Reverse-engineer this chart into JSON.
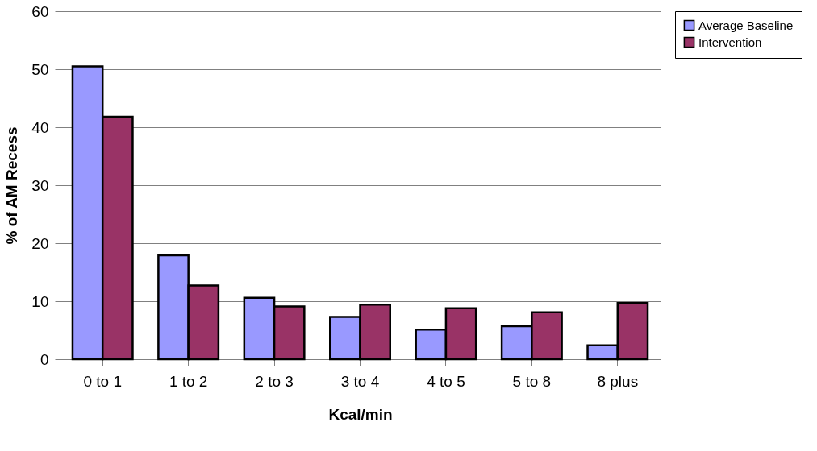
{
  "chart_data": {
    "type": "bar",
    "xlabel": "Kcal/min",
    "ylabel": "% of AM Recess",
    "categories": [
      "0 to 1",
      "1 to 2",
      "2 to 3",
      "3 to 4",
      "4 to 5",
      "5 to 8",
      "8 plus"
    ],
    "series": [
      {
        "name": "Average Baseline",
        "color": "#9999ff",
        "values": [
          50.5,
          17.9,
          10.6,
          7.3,
          5.1,
          5.7,
          2.4
        ]
      },
      {
        "name": "Intervention",
        "color": "#993366",
        "values": [
          41.8,
          12.7,
          9.1,
          9.4,
          8.8,
          8.1,
          9.7
        ]
      }
    ],
    "ylim": [
      0,
      60
    ],
    "yticks": [
      0,
      10,
      20,
      30,
      40,
      50,
      60
    ],
    "grid": "y",
    "legend": "right"
  }
}
